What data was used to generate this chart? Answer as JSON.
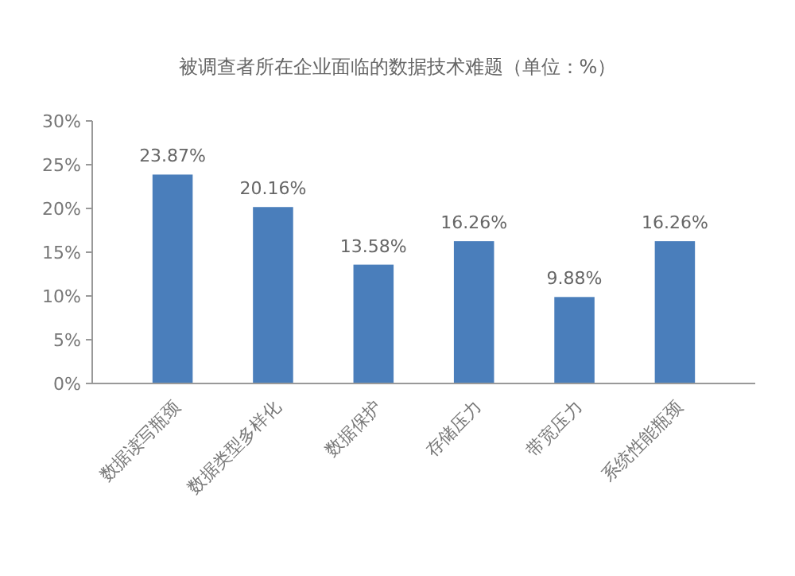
{
  "chart_data": {
    "type": "bar",
    "title": "被调查者所在企业面临的数据技术难题（单位：%）",
    "categories": [
      "数据读写瓶颈",
      "数据类型多样化",
      "数据保护",
      "存储压力",
      "带宽压力",
      "系统性能瓶颈"
    ],
    "values": [
      23.87,
      20.16,
      13.58,
      16.26,
      9.88,
      16.26
    ],
    "value_labels": [
      "23.87%",
      "20.16%",
      "13.58%",
      "16.26%",
      "9.88%",
      "16.26%"
    ],
    "color": "#4a7ebb",
    "ylim": [
      0,
      30
    ],
    "yticks": [
      {
        "value": 0,
        "label": "0%"
      },
      {
        "value": 5,
        "label": "5%"
      },
      {
        "value": 10,
        "label": "10%"
      },
      {
        "value": 15,
        "label": "15%"
      },
      {
        "value": 20,
        "label": "20%"
      },
      {
        "value": 25,
        "label": "25%"
      },
      {
        "value": 30,
        "label": "30%"
      }
    ],
    "grid": false
  }
}
